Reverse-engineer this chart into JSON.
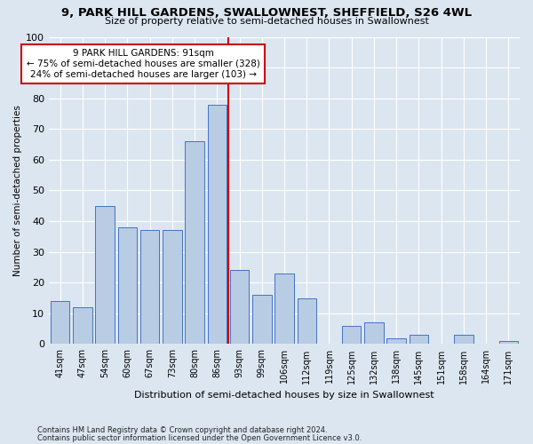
{
  "title": "9, PARK HILL GARDENS, SWALLOWNEST, SHEFFIELD, S26 4WL",
  "subtitle": "Size of property relative to semi-detached houses in Swallownest",
  "xlabel": "Distribution of semi-detached houses by size in Swallownest",
  "ylabel": "Number of semi-detached properties",
  "footnote1": "Contains HM Land Registry data © Crown copyright and database right 2024.",
  "footnote2": "Contains public sector information licensed under the Open Government Licence v3.0.",
  "categories": [
    "41sqm",
    "47sqm",
    "54sqm",
    "60sqm",
    "67sqm",
    "73sqm",
    "80sqm",
    "86sqm",
    "93sqm",
    "99sqm",
    "106sqm",
    "112sqm",
    "119sqm",
    "125sqm",
    "132sqm",
    "138sqm",
    "145sqm",
    "151sqm",
    "158sqm",
    "164sqm",
    "171sqm"
  ],
  "values": [
    14,
    12,
    45,
    38,
    37,
    37,
    66,
    78,
    24,
    16,
    23,
    15,
    0,
    6,
    7,
    2,
    3,
    0,
    3,
    0,
    1
  ],
  "bar_color": "#b8cce4",
  "bar_edge_color": "#4472c4",
  "background_color": "#dce6f1",
  "vline_color": "#cc0000",
  "annotation_line1": "9 PARK HILL GARDENS: 91sqm",
  "annotation_line2": "← 75% of semi-detached houses are smaller (328)",
  "annotation_line3": "24% of semi-detached houses are larger (103) →",
  "annotation_box_color": "#ffffff",
  "annotation_box_edge": "#cc0000",
  "ylim": [
    0,
    100
  ],
  "yticks": [
    0,
    10,
    20,
    30,
    40,
    50,
    60,
    70,
    80,
    90,
    100
  ]
}
